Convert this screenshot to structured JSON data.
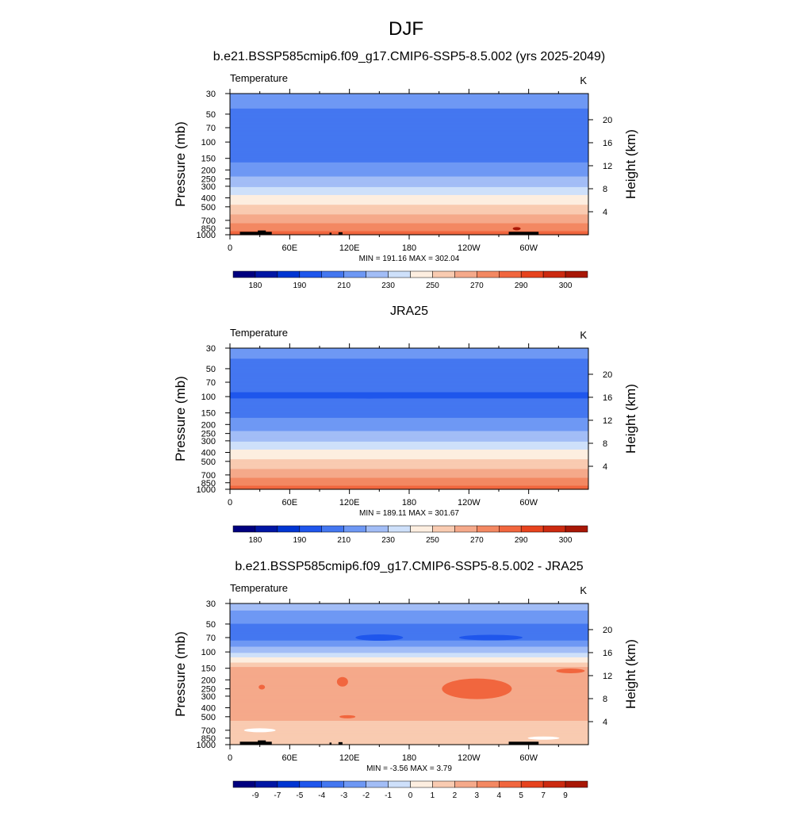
{
  "figure": {
    "title": "DJF"
  },
  "panels": [
    {
      "title": "b.e21.BSSP585cmip6.f09_g17.CMIP6-SSP5-8.5.002 (yrs 2025-2049)",
      "left_label": "Temperature",
      "right_label": "K",
      "minmax": "MIN = 191.16  MAX = 302.04"
    },
    {
      "title": "JRA25",
      "left_label": "Temperature",
      "right_label": "K",
      "minmax": "MIN = 189.11  MAX = 301.67"
    },
    {
      "title": "b.e21.BSSP585cmip6.f09_g17.CMIP6-SSP5-8.5.002 - JRA25",
      "left_label": "Temperature",
      "right_label": "K",
      "minmax": "MIN =  -3.56  MAX =  3.79"
    }
  ],
  "chart_data": [
    {
      "type": "heatmap",
      "title": "b.e21.BSSP585cmip6.f09_g17.CMIP6-SSP5-8.5.002 (yrs 2025-2049)",
      "variable": "Temperature",
      "units": "K",
      "xlabel": "",
      "ylabel": "Pressure (mb)",
      "ylabel_right": "Height (km)",
      "x_ticks": [
        "0",
        "60E",
        "120E",
        "180",
        "120W",
        "60W"
      ],
      "x_tick_values": [
        0,
        60,
        120,
        180,
        240,
        300
      ],
      "xlim": [
        0,
        360
      ],
      "y_ticks": [
        "30",
        "50",
        "70",
        "100",
        "150",
        "200",
        "250",
        "300",
        "400",
        "500",
        "700",
        "850",
        "1000"
      ],
      "y_tick_values": [
        30,
        50,
        70,
        100,
        150,
        200,
        250,
        300,
        400,
        500,
        700,
        850,
        1000
      ],
      "ylim": [
        1000,
        30
      ],
      "y_scale": "log",
      "height_ticks": [
        "4",
        "8",
        "12",
        "16",
        "20"
      ],
      "height_tick_values": [
        4,
        8,
        12,
        16,
        20
      ],
      "min": 191.16,
      "max": 302.04,
      "temperature_profile": {
        "pressure": [
          30,
          50,
          70,
          100,
          150,
          200,
          250,
          300,
          400,
          500,
          700,
          850,
          1000
        ],
        "values": [
          216,
          208,
          203,
          202,
          208,
          214,
          222,
          229,
          243,
          252,
          266,
          276,
          285
        ]
      },
      "contour_levels": [
        175,
        180,
        185,
        190,
        200,
        210,
        220,
        230,
        240,
        250,
        260,
        270,
        280,
        290,
        295,
        300,
        305
      ],
      "colorbar_labels": [
        "180",
        "190",
        "210",
        "230",
        "250",
        "270",
        "290",
        "300"
      ]
    },
    {
      "type": "heatmap",
      "title": "JRA25",
      "variable": "Temperature",
      "units": "K",
      "xlabel": "",
      "ylabel": "Pressure (mb)",
      "ylabel_right": "Height (km)",
      "x_ticks": [
        "0",
        "60E",
        "120E",
        "180",
        "120W",
        "60W"
      ],
      "x_tick_values": [
        0,
        60,
        120,
        180,
        240,
        300
      ],
      "xlim": [
        0,
        360
      ],
      "y_ticks": [
        "30",
        "50",
        "70",
        "100",
        "150",
        "200",
        "250",
        "300",
        "400",
        "500",
        "700",
        "850",
        "1000"
      ],
      "y_tick_values": [
        30,
        50,
        70,
        100,
        150,
        200,
        250,
        300,
        400,
        500,
        700,
        850,
        1000
      ],
      "ylim": [
        1000,
        30
      ],
      "y_scale": "log",
      "height_ticks": [
        "4",
        "8",
        "12",
        "16",
        "20"
      ],
      "height_tick_values": [
        4,
        8,
        12,
        16,
        20
      ],
      "min": 189.11,
      "max": 301.67,
      "temperature_profile": {
        "pressure": [
          30,
          50,
          70,
          100,
          150,
          200,
          250,
          300,
          400,
          500,
          700,
          850,
          1000
        ],
        "values": [
          214,
          206,
          202,
          199,
          207,
          214,
          222,
          229,
          243,
          252,
          266,
          276,
          286
        ]
      },
      "contour_levels": [
        175,
        180,
        185,
        190,
        200,
        210,
        220,
        230,
        240,
        250,
        260,
        270,
        280,
        290,
        295,
        300,
        305
      ],
      "colorbar_labels": [
        "180",
        "190",
        "210",
        "230",
        "250",
        "270",
        "290",
        "300"
      ]
    },
    {
      "type": "heatmap",
      "title": "b.e21.BSSP585cmip6.f09_g17.CMIP6-SSP5-8.5.002 - JRA25",
      "variable": "Temperature",
      "units": "K",
      "xlabel": "",
      "ylabel": "Pressure (mb)",
      "ylabel_right": "Height (km)",
      "x_ticks": [
        "0",
        "60E",
        "120E",
        "180",
        "120W",
        "60W"
      ],
      "x_tick_values": [
        0,
        60,
        120,
        180,
        240,
        300
      ],
      "xlim": [
        0,
        360
      ],
      "y_ticks": [
        "30",
        "50",
        "70",
        "100",
        "150",
        "200",
        "250",
        "300",
        "400",
        "500",
        "700",
        "850",
        "1000"
      ],
      "y_tick_values": [
        30,
        50,
        70,
        100,
        150,
        200,
        250,
        300,
        400,
        500,
        700,
        850,
        1000
      ],
      "ylim": [
        1000,
        30
      ],
      "y_scale": "log",
      "height_ticks": [
        "4",
        "8",
        "12",
        "16",
        "20"
      ],
      "height_tick_values": [
        4,
        8,
        12,
        16,
        20
      ],
      "min": -3.56,
      "max": 3.79,
      "difference_profile": {
        "pressure": [
          30,
          50,
          70,
          100,
          150,
          200,
          250,
          300,
          400,
          500,
          700,
          850,
          1000
        ],
        "values": [
          -1.5,
          -3.0,
          -3.5,
          -1.2,
          2.2,
          2.6,
          2.5,
          2.6,
          2.4,
          2.2,
          1.6,
          1.2,
          1.0
        ]
      },
      "contour_levels": [
        -11,
        -9,
        -7,
        -5,
        -4,
        -3,
        -2,
        -1,
        0,
        1,
        2,
        3,
        4,
        5,
        7,
        9,
        11
      ],
      "colorbar_labels": [
        "-9",
        "-7",
        "-5",
        "-4",
        "-3",
        "-2",
        "-1",
        "0",
        "1",
        "2",
        "3",
        "4",
        "5",
        "7",
        "9"
      ]
    }
  ],
  "colormap": [
    "#00007f",
    "#0016a4",
    "#0035d2",
    "#1f56ec",
    "#4477f0",
    "#6e98f4",
    "#a2bdf6",
    "#cee0fa",
    "#fdeee0",
    "#f9cbb1",
    "#f5a98a",
    "#f38862",
    "#f1663e",
    "#e7431e",
    "#cc2a10",
    "#a81706",
    "#7c0000"
  ],
  "topography_color": "#000000"
}
